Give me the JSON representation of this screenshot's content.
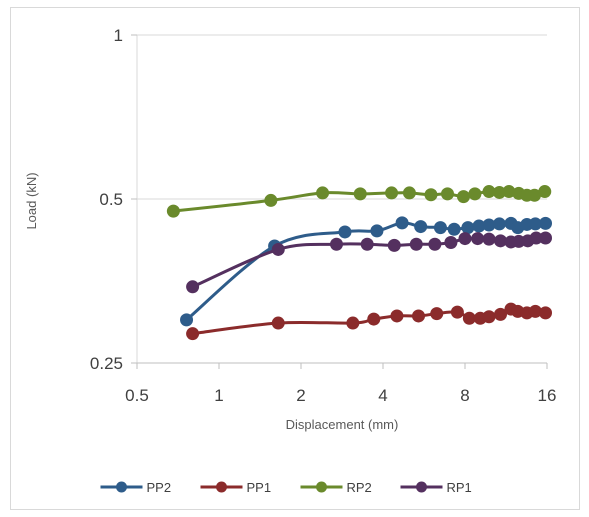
{
  "chart_data": {
    "type": "line",
    "title": "",
    "xlabel": "Displacement (mm)",
    "ylabel": "Load (kN)",
    "xscale": "log2",
    "yscale": "log2",
    "xlim": [
      0.5,
      16
    ],
    "ylim": [
      0.25,
      1
    ],
    "x_ticks": [
      "0.5",
      "1",
      "2",
      "4",
      "8",
      "16"
    ],
    "y_ticks": [
      "0.25",
      "0.5",
      "1"
    ],
    "grid": "horizontal",
    "legend": "bottom",
    "series": [
      {
        "name": "PP2",
        "color": "#2e5c8a",
        "points": [
          [
            0.76,
            0.3
          ],
          [
            1.6,
            0.41
          ],
          [
            2.9,
            0.435
          ],
          [
            3.8,
            0.437
          ],
          [
            4.7,
            0.452
          ],
          [
            5.5,
            0.445
          ],
          [
            6.5,
            0.443
          ],
          [
            7.3,
            0.44
          ],
          [
            8.2,
            0.443
          ],
          [
            9.0,
            0.446
          ],
          [
            9.8,
            0.448
          ],
          [
            10.7,
            0.45
          ],
          [
            11.8,
            0.451
          ],
          [
            12.5,
            0.443
          ],
          [
            13.5,
            0.449
          ],
          [
            14.5,
            0.45
          ],
          [
            15.8,
            0.451
          ]
        ]
      },
      {
        "name": "PP1",
        "color": "#8b2b2b",
        "points": [
          [
            0.8,
            0.283
          ],
          [
            1.65,
            0.296
          ],
          [
            3.1,
            0.296
          ],
          [
            3.7,
            0.301
          ],
          [
            4.5,
            0.305
          ],
          [
            5.4,
            0.305
          ],
          [
            6.3,
            0.308
          ],
          [
            7.5,
            0.31
          ],
          [
            8.3,
            0.302
          ],
          [
            9.1,
            0.302
          ],
          [
            9.8,
            0.304
          ],
          [
            10.8,
            0.307
          ],
          [
            11.8,
            0.314
          ],
          [
            12.5,
            0.311
          ],
          [
            13.5,
            0.309
          ],
          [
            14.5,
            0.311
          ],
          [
            15.8,
            0.309
          ]
        ]
      },
      {
        "name": "RP2",
        "color": "#6a8a2c",
        "points": [
          [
            0.68,
            0.475
          ],
          [
            1.55,
            0.497
          ],
          [
            2.4,
            0.513
          ],
          [
            3.3,
            0.511
          ],
          [
            4.3,
            0.513
          ],
          [
            5.0,
            0.513
          ],
          [
            6.0,
            0.509
          ],
          [
            6.9,
            0.511
          ],
          [
            7.9,
            0.505
          ],
          [
            8.7,
            0.511
          ],
          [
            9.8,
            0.516
          ],
          [
            10.7,
            0.514
          ],
          [
            11.6,
            0.516
          ],
          [
            12.6,
            0.512
          ],
          [
            13.5,
            0.508
          ],
          [
            14.4,
            0.508
          ],
          [
            15.7,
            0.516
          ]
        ]
      },
      {
        "name": "RP1",
        "color": "#54305f",
        "points": [
          [
            0.8,
            0.345
          ],
          [
            1.65,
            0.404
          ],
          [
            2.7,
            0.413
          ],
          [
            3.5,
            0.413
          ],
          [
            4.4,
            0.411
          ],
          [
            5.3,
            0.413
          ],
          [
            6.2,
            0.413
          ],
          [
            7.1,
            0.416
          ],
          [
            8.0,
            0.423
          ],
          [
            8.9,
            0.423
          ],
          [
            9.8,
            0.422
          ],
          [
            10.8,
            0.419
          ],
          [
            11.8,
            0.417
          ],
          [
            12.6,
            0.418
          ],
          [
            13.6,
            0.419
          ],
          [
            14.6,
            0.424
          ],
          [
            15.8,
            0.424
          ]
        ]
      }
    ]
  }
}
